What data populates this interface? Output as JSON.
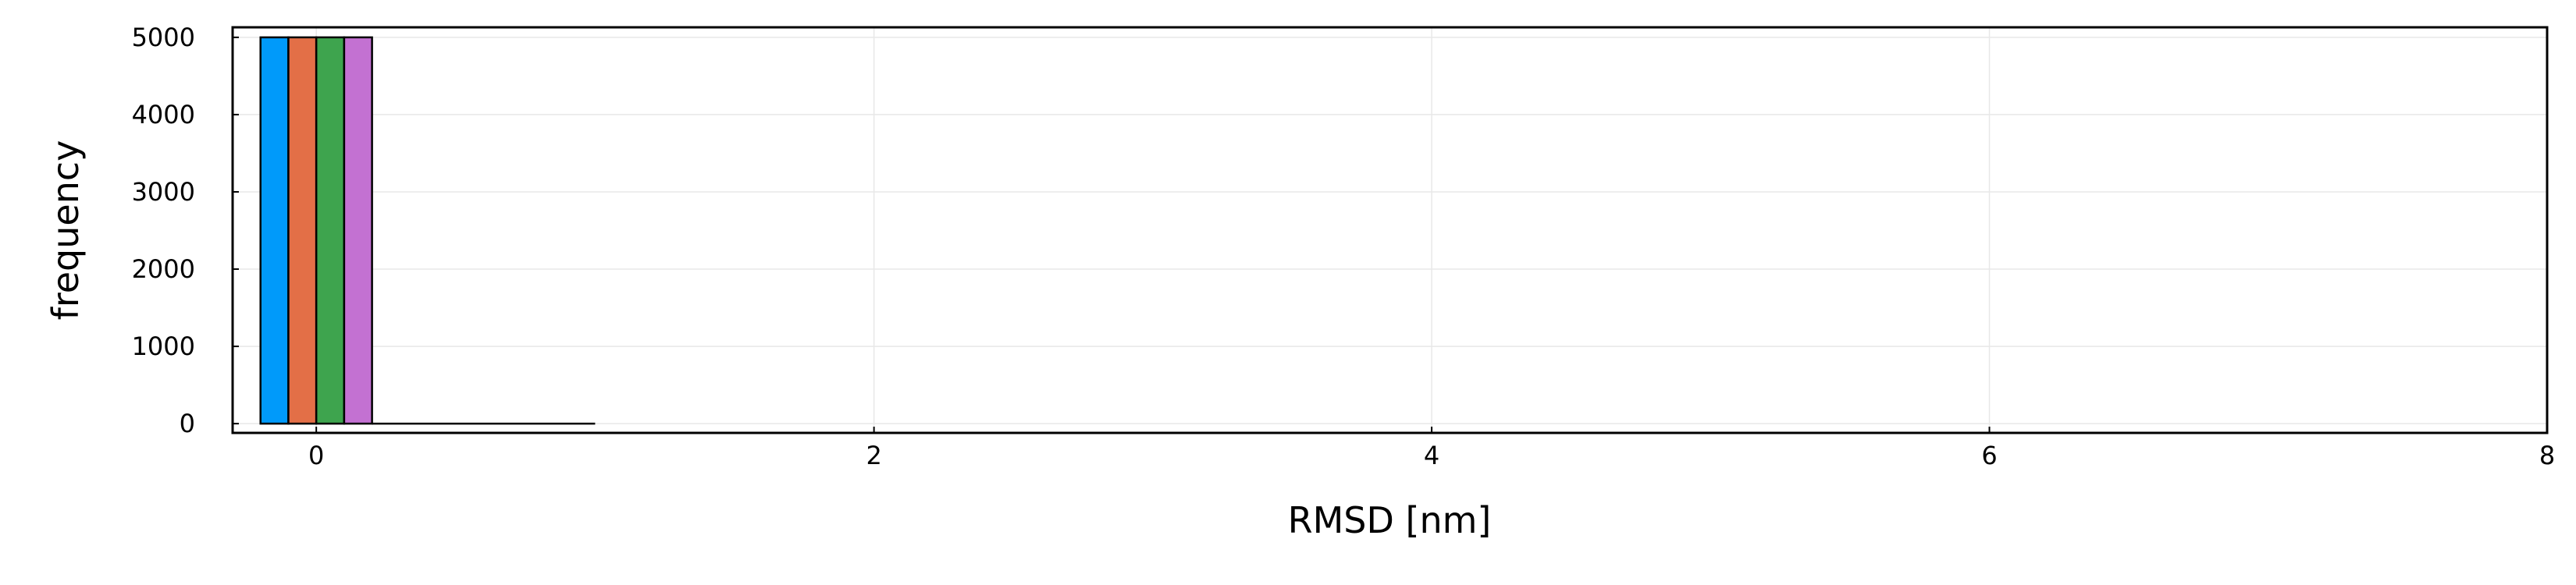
{
  "chart_data": {
    "type": "bar",
    "title": "",
    "xlabel": "RMSD [nm]",
    "ylabel": "frequency",
    "xlim": [
      -0.3,
      8.0
    ],
    "ylim": [
      -120,
      5130
    ],
    "x_ticks": [
      0,
      2,
      4,
      6,
      8
    ],
    "y_ticks": [
      0,
      1000,
      2000,
      3000,
      4000,
      5000
    ],
    "grid": true,
    "legend": "none",
    "bar_width": 0.1,
    "series": [
      {
        "color": "#009AFA",
        "x": -0.15,
        "value": 5000
      },
      {
        "color": "#E36F47",
        "x": -0.05,
        "value": 5000
      },
      {
        "color": "#3EA44E",
        "x": 0.05,
        "value": 5000
      },
      {
        "color": "#C371D2",
        "x": 0.15,
        "value": 5000
      }
    ],
    "tail": {
      "x_start": 0.2,
      "x_end": 1.0,
      "value": 0
    }
  }
}
